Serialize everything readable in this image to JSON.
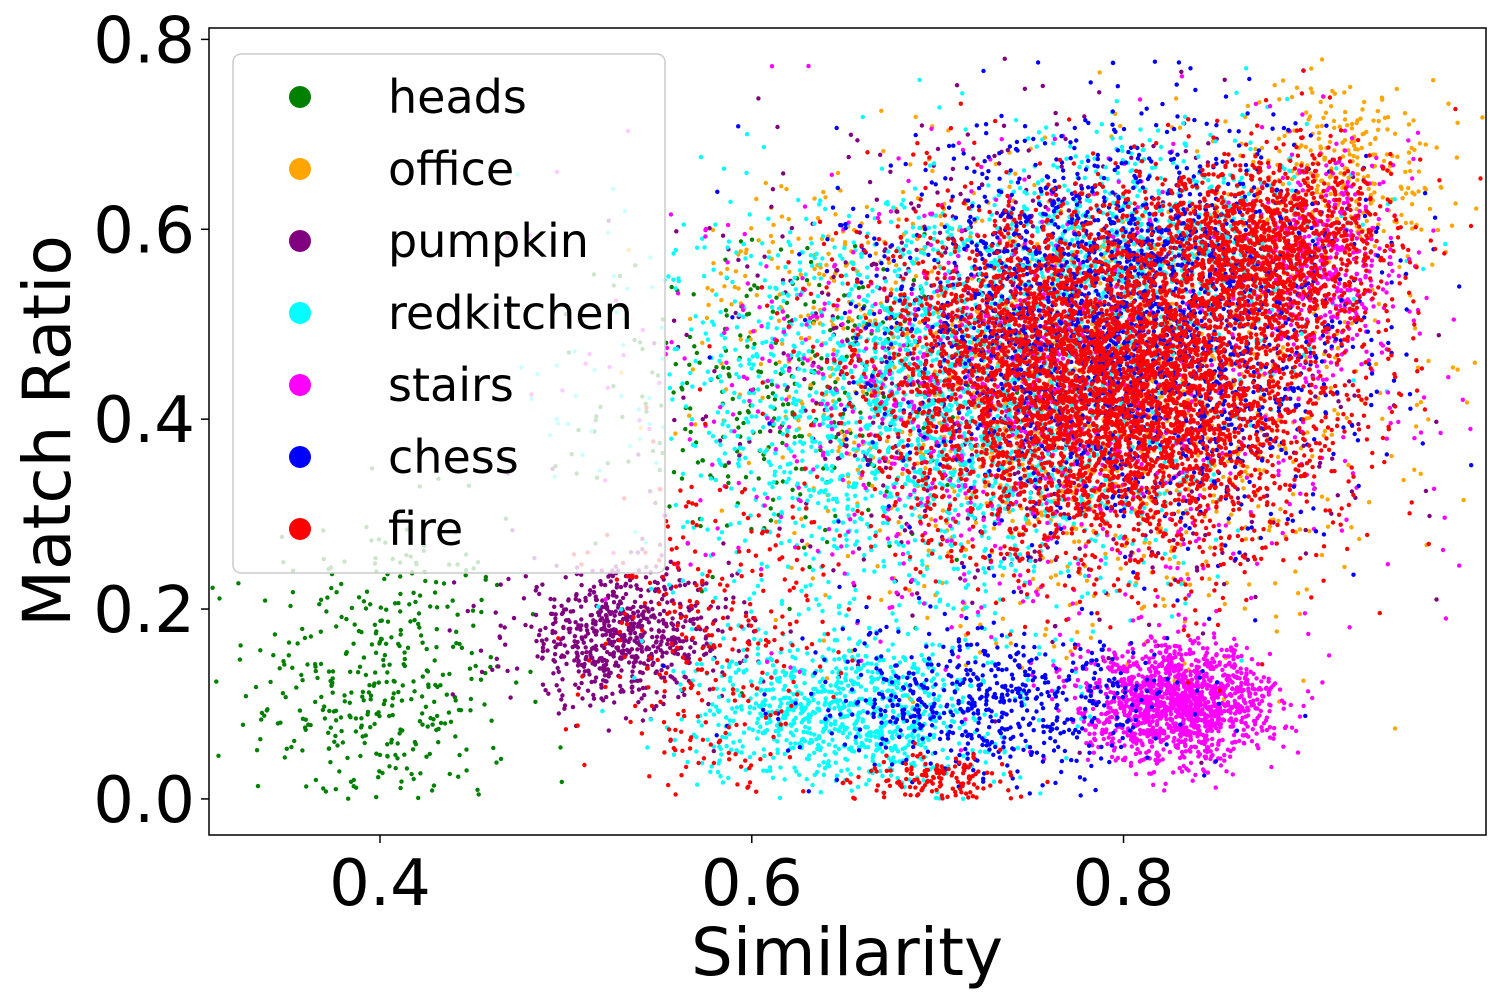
{
  "chart_data": {
    "type": "scatter",
    "title": "",
    "xlabel": "Similarity",
    "ylabel": "Match Ratio",
    "xlim": [
      0.308,
      0.995
    ],
    "ylim": [
      -0.038,
      0.812
    ],
    "xticks": [
      0.4,
      0.6,
      0.8
    ],
    "xtick_labels": [
      "0.4",
      "0.6",
      "0.8"
    ],
    "yticks": [
      0.0,
      0.2,
      0.4,
      0.6,
      0.8
    ],
    "ytick_labels": [
      "0.0",
      "0.2",
      "0.4",
      "0.6",
      "0.8"
    ],
    "grid": false,
    "legend_position": "top-left",
    "series": [
      {
        "name": "heads",
        "color": "#008000",
        "clusters": [
          {
            "cx": 0.4,
            "cy": 0.12,
            "sx": 0.035,
            "sy": 0.09,
            "n": 420
          },
          {
            "cx": 0.62,
            "cy": 0.42,
            "sx": 0.05,
            "sy": 0.08,
            "n": 300
          }
        ]
      },
      {
        "name": "office",
        "color": "#FFA500",
        "clusters": [
          {
            "cx": 0.78,
            "cy": 0.42,
            "sx": 0.08,
            "sy": 0.12,
            "n": 1200
          },
          {
            "cx": 0.92,
            "cy": 0.66,
            "sx": 0.03,
            "sy": 0.05,
            "n": 300
          },
          {
            "cx": 0.63,
            "cy": 0.55,
            "sx": 0.03,
            "sy": 0.06,
            "n": 120
          }
        ]
      },
      {
        "name": "pumpkin",
        "color": "#800080",
        "clusters": [
          {
            "cx": 0.53,
            "cy": 0.17,
            "sx": 0.03,
            "sy": 0.035,
            "n": 700
          },
          {
            "cx": 0.76,
            "cy": 0.46,
            "sx": 0.08,
            "sy": 0.12,
            "n": 900
          }
        ]
      },
      {
        "name": "redkitchen",
        "color": "#00FFFF",
        "clusters": [
          {
            "cx": 0.7,
            "cy": 0.42,
            "sx": 0.07,
            "sy": 0.11,
            "n": 2200
          },
          {
            "cx": 0.65,
            "cy": 0.09,
            "sx": 0.04,
            "sy": 0.04,
            "n": 900
          },
          {
            "cx": 0.82,
            "cy": 0.58,
            "sx": 0.05,
            "sy": 0.06,
            "n": 700
          }
        ]
      },
      {
        "name": "stairs",
        "color": "#FF00FF",
        "clusters": [
          {
            "cx": 0.83,
            "cy": 0.1,
            "sx": 0.025,
            "sy": 0.03,
            "n": 1400
          },
          {
            "cx": 0.75,
            "cy": 0.42,
            "sx": 0.09,
            "sy": 0.12,
            "n": 1000
          },
          {
            "cx": 0.91,
            "cy": 0.56,
            "sx": 0.02,
            "sy": 0.06,
            "n": 400
          }
        ]
      },
      {
        "name": "chess",
        "color": "#0000FF",
        "clusters": [
          {
            "cx": 0.8,
            "cy": 0.5,
            "sx": 0.06,
            "sy": 0.1,
            "n": 2200
          },
          {
            "cx": 0.73,
            "cy": 0.1,
            "sx": 0.05,
            "sy": 0.04,
            "n": 600
          }
        ]
      },
      {
        "name": "fire",
        "color": "#FF0000",
        "clusters": [
          {
            "cx": 0.79,
            "cy": 0.44,
            "sx": 0.06,
            "sy": 0.09,
            "n": 5000
          },
          {
            "cx": 0.88,
            "cy": 0.58,
            "sx": 0.03,
            "sy": 0.05,
            "n": 1200
          },
          {
            "cx": 0.58,
            "cy": 0.16,
            "sx": 0.03,
            "sy": 0.09,
            "n": 300
          },
          {
            "cx": 0.7,
            "cy": 0.02,
            "sx": 0.02,
            "sy": 0.015,
            "n": 150
          }
        ]
      }
    ]
  }
}
